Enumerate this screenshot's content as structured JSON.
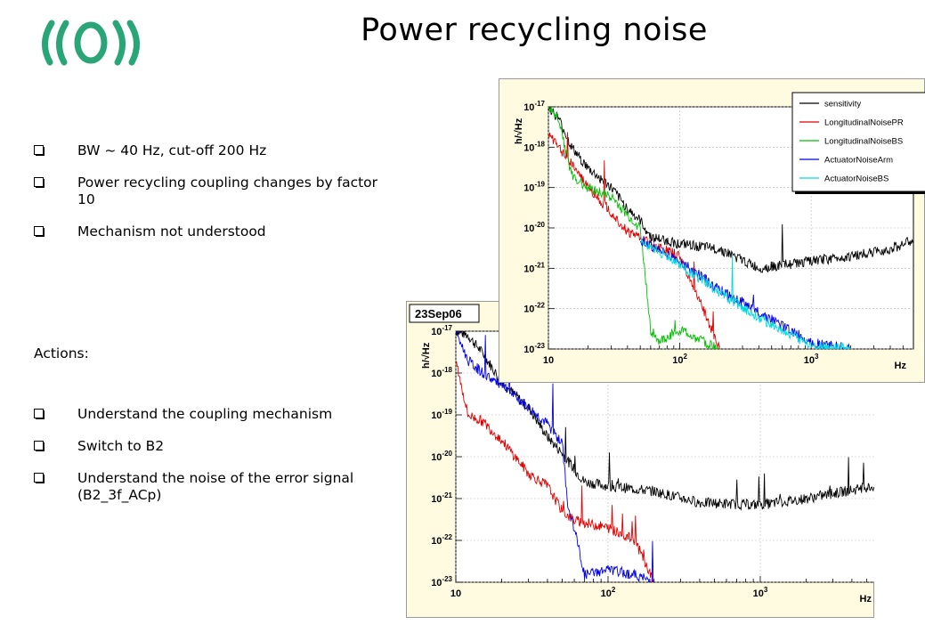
{
  "slide": {
    "title": "Power recycling noise",
    "logo": "virgo-logo",
    "bullets_top": [
      "BW ~ 40 Hz, cut-off 200 Hz",
      "Power recycling coupling changes by factor 10",
      "Mechanism not understood"
    ],
    "actions_label": "Actions:",
    "bullets_bottom": [
      "Understand the coupling mechanism",
      "Switch to B2",
      "Understand the noise of the error signal (B2_3f_ACp)"
    ]
  },
  "chart_data": [
    {
      "type": "line",
      "title": "23Sep06",
      "ylabel": "h/√Hz",
      "xlabel": "Hz",
      "xscale": "log",
      "yscale": "log",
      "xlim": [
        10,
        6000
      ],
      "ylim": [
        1e-23,
        1e-17
      ],
      "xticks": [
        "10",
        "10^2",
        "10^3"
      ],
      "yticks": [
        "10^-17",
        "10^-18",
        "10^-19",
        "10^-20",
        "10^-21",
        "10^-22",
        "10^-23"
      ],
      "series": [
        {
          "color": "#000000",
          "x": [
            10,
            12,
            15,
            20,
            30,
            40,
            50,
            60,
            70,
            100,
            200,
            400,
            1000,
            2000,
            4000,
            6000
          ],
          "y": [
            1e-17,
            8e-18,
            3e-18,
            6e-19,
            1.5e-19,
            3e-20,
            1.2e-20,
            5e-21,
            2.5e-21,
            2e-21,
            1.5e-21,
            8e-22,
            7e-22,
            1e-21,
            1.6e-21,
            2e-21
          ]
        },
        {
          "color": "#e00000",
          "x": [
            10,
            12,
            15,
            20,
            30,
            40,
            50,
            60,
            100,
            150,
            200
          ],
          "y": [
            2e-18,
            1e-19,
            7e-20,
            2.5e-20,
            4e-21,
            2e-21,
            5e-22,
            3e-22,
            2e-22,
            1e-22,
            1e-23
          ]
        },
        {
          "color": "#0000e0",
          "x": [
            10,
            12,
            15,
            20,
            30,
            40,
            50,
            55,
            60,
            70,
            100,
            150,
            200
          ],
          "y": [
            1e-17,
            2e-18,
            1e-18,
            5e-19,
            1.5e-19,
            6e-20,
            2e-20,
            5e-22,
            2e-22,
            1.5e-23,
            2e-23,
            1.5e-23,
            1e-23
          ]
        }
      ]
    },
    {
      "type": "line",
      "ylabel": "h/√Hz",
      "xlabel": "Hz",
      "xscale": "log",
      "yscale": "log",
      "xlim": [
        10,
        6000
      ],
      "ylim": [
        1e-23,
        1e-17
      ],
      "xticks": [
        "10",
        "10^2",
        "10^3"
      ],
      "yticks": [
        "10^-17",
        "10^-18",
        "10^-19",
        "10^-20",
        "10^-21",
        "10^-22",
        "10^-23"
      ],
      "legend": "top-right",
      "series": [
        {
          "name": "sensitivity",
          "color": "#000000",
          "x": [
            10,
            12,
            15,
            20,
            30,
            40,
            50,
            60,
            100,
            200,
            400,
            1000,
            2000,
            4000,
            6000
          ],
          "y": [
            1e-17,
            5e-18,
            1e-18,
            3e-19,
            1e-19,
            3e-20,
            1.5e-20,
            6e-21,
            4e-21,
            3e-21,
            1e-21,
            1.5e-21,
            2e-21,
            3e-21,
            5e-21
          ]
        },
        {
          "name": "LongitudinalNoisePR",
          "color": "#e00000",
          "x": [
            10,
            12,
            15,
            20,
            30,
            40,
            50,
            60,
            100,
            150,
            200
          ],
          "y": [
            2e-18,
            1e-18,
            4e-19,
            1e-19,
            2.5e-20,
            8e-21,
            6e-21,
            4e-21,
            2e-21,
            1e-22,
            1e-23
          ]
        },
        {
          "name": "LongitudinalNoiseBS",
          "color": "#00c000",
          "x": [
            10,
            12,
            15,
            20,
            30,
            40,
            50,
            55,
            60,
            70,
            100,
            150,
            200
          ],
          "y": [
            1e-17,
            5e-18,
            2e-19,
            1e-19,
            6e-20,
            2e-20,
            1e-20,
            5e-22,
            3e-23,
            1.5e-23,
            3e-23,
            1.5e-23,
            1e-23
          ]
        },
        {
          "name": "ActuatorNoiseArm",
          "color": "#0000e0",
          "x": [
            50,
            100,
            200,
            400,
            1000,
            2000
          ],
          "y": [
            5e-21,
            1.5e-21,
            3e-22,
            8e-23,
            1.5e-23,
            1e-23
          ]
        },
        {
          "name": "ActuatorNoiseBS",
          "color": "#00d8e0",
          "x": [
            50,
            100,
            200,
            400,
            1000,
            2000
          ],
          "y": [
            5e-21,
            1.2e-21,
            2.5e-22,
            6e-23,
            1.2e-23,
            1e-23
          ]
        }
      ]
    }
  ]
}
